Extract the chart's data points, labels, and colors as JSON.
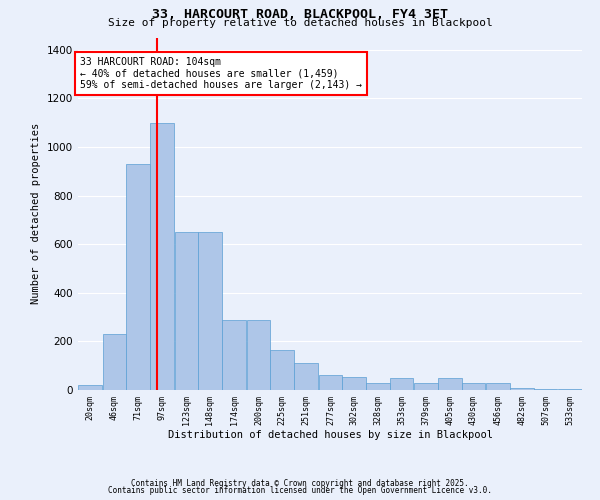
{
  "title1": "33, HARCOURT ROAD, BLACKPOOL, FY4 3ET",
  "title2": "Size of property relative to detached houses in Blackpool",
  "xlabel": "Distribution of detached houses by size in Blackpool",
  "ylabel": "Number of detached properties",
  "annotation_title": "33 HARCOURT ROAD: 104sqm",
  "annotation_line1": "← 40% of detached houses are smaller (1,459)",
  "annotation_line2": "59% of semi-detached houses are larger (2,143) →",
  "footer1": "Contains HM Land Registry data © Crown copyright and database right 2025.",
  "footer2": "Contains public sector information licensed under the Open Government Licence v3.0.",
  "bar_left_edges": [
    20,
    46,
    71,
    97,
    123,
    148,
    174,
    200,
    225,
    251,
    277,
    302,
    328,
    353,
    379,
    405,
    430,
    456,
    482,
    507,
    533
  ],
  "bar_heights": [
    20,
    230,
    930,
    1100,
    650,
    650,
    290,
    290,
    165,
    110,
    60,
    55,
    30,
    50,
    30,
    50,
    30,
    30,
    10,
    5,
    5
  ],
  "bar_color": "#aec6e8",
  "bar_edge_color": "#5a9fd4",
  "vline_x": 104,
  "vline_color": "red",
  "background_color": "#eaf0fb",
  "grid_color": "#ffffff",
  "ylim": [
    0,
    1450
  ],
  "yticks": [
    0,
    200,
    400,
    600,
    800,
    1000,
    1200,
    1400
  ],
  "tick_labels": [
    "20sqm",
    "46sqm",
    "71sqm",
    "97sqm",
    "123sqm",
    "148sqm",
    "174sqm",
    "200sqm",
    "225sqm",
    "251sqm",
    "277sqm",
    "302sqm",
    "328sqm",
    "353sqm",
    "379sqm",
    "405sqm",
    "430sqm",
    "456sqm",
    "482sqm",
    "507sqm",
    "533sqm"
  ],
  "title_fontsize": 9.5,
  "subtitle_fontsize": 8,
  "ylabel_fontsize": 7.5,
  "xlabel_fontsize": 7.5
}
